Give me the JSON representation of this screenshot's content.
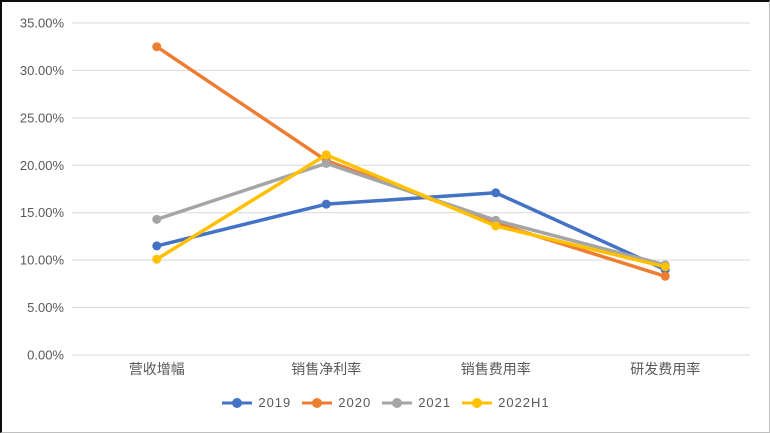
{
  "chart_data": {
    "type": "line",
    "title": "",
    "categories": [
      "营收增幅",
      "销售净利率",
      "销售费用率",
      "研发费用率"
    ],
    "series": [
      {
        "name": "2019",
        "color": "#4472C4",
        "values": [
          11.5,
          15.9,
          17.1,
          9.0
        ]
      },
      {
        "name": "2020",
        "color": "#ED7D31",
        "values": [
          32.5,
          20.5,
          13.9,
          8.3
        ]
      },
      {
        "name": "2021",
        "color": "#A5A5A5",
        "values": [
          14.3,
          20.2,
          14.2,
          9.5
        ]
      },
      {
        "name": "2022H1",
        "color": "#FFC000",
        "values": [
          10.1,
          21.1,
          13.6,
          9.3
        ]
      }
    ],
    "y_axis": {
      "min": 0,
      "max": 35,
      "step": 5,
      "tick_labels": [
        "0.00%",
        "5.00%",
        "10.00%",
        "15.00%",
        "20.00%",
        "25.00%",
        "30.00%",
        "35.00%"
      ]
    },
    "grid": true,
    "legend_position": "bottom"
  },
  "styles": {
    "gridline_color": "#d9d9d9",
    "text_color": "#595959",
    "background": "#ffffff"
  }
}
